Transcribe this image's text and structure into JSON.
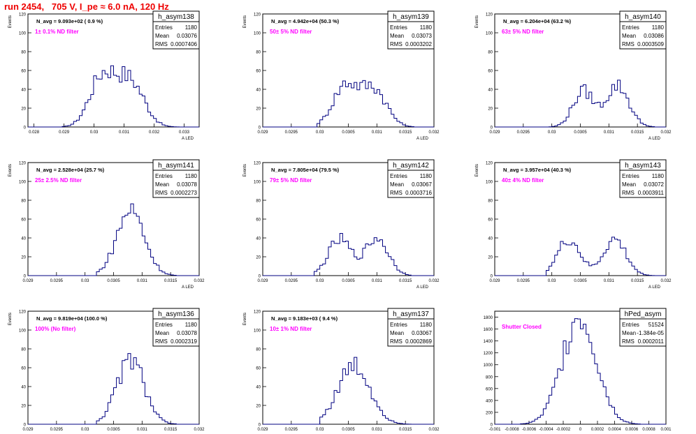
{
  "page": {
    "title": "run 2454,   705 V, I_pe ≈ 6.0 nA, 120 Hz"
  },
  "chart_data": [
    {
      "type": "bar",
      "name": "h_asym138",
      "navg": "N_avg = 9.093e+02 ( 0.9 %)",
      "label": "1± 0.1% ND filter",
      "stats": {
        "entries": "1180",
        "mean": "0.03076",
        "rms": "0.0007406"
      },
      "ylabel": "Events",
      "xlabel": "A_LED",
      "xlim": [
        0.0278,
        0.0335
      ],
      "ylim": [
        0,
        120
      ],
      "xticks": [
        0.028,
        0.029,
        0.03,
        0.031,
        0.032,
        0.033
      ],
      "xtick_labels": [
        "0.028",
        "0.029",
        "0.03",
        "0.031",
        "0.032",
        "0.033"
      ],
      "yticks": [
        0,
        20,
        40,
        60,
        80,
        100,
        120
      ],
      "shape": {
        "peaks": [
          [
            0.0302,
            42,
            0.0004
          ],
          [
            0.0309,
            38,
            0.0005
          ],
          [
            0.0314,
            22,
            0.0004
          ]
        ],
        "range": [
          0.0289,
          0.0328
        ]
      }
    },
    {
      "type": "bar",
      "name": "h_asym139",
      "navg": "N_avg = 4.942e+04 (50.3 %)",
      "label": "50± 5% ND filter",
      "stats": {
        "entries": "1180",
        "mean": "0.03073",
        "rms": "0.0003202"
      },
      "ylabel": "Events",
      "xlabel": "A_LED",
      "xlim": [
        0.029,
        0.032
      ],
      "ylim": [
        0,
        120
      ],
      "xticks": [
        0.029,
        0.0295,
        0.03,
        0.0305,
        0.031,
        0.0315,
        0.032
      ],
      "xtick_labels": [
        "0.029",
        "0.0295",
        "0.03",
        "0.0305",
        "0.031",
        "0.0315",
        "0.032"
      ],
      "yticks": [
        0,
        20,
        40,
        60,
        80,
        100,
        120
      ],
      "shape": {
        "peaks": [
          [
            0.03045,
            44,
            0.00022
          ],
          [
            0.03095,
            40,
            0.00022
          ]
        ],
        "range": [
          0.02995,
          0.03165
        ]
      }
    },
    {
      "type": "bar",
      "name": "h_asym140",
      "navg": "N_avg = 6.204e+04 (63.2 %)",
      "label": "63± 5% ND filter",
      "stats": {
        "entries": "1180",
        "mean": "0.03086",
        "rms": "0.0003509"
      },
      "ylabel": "Events",
      "xlabel": "A_LED",
      "xlim": [
        0.029,
        0.032
      ],
      "ylim": [
        0,
        120
      ],
      "xticks": [
        0.029,
        0.0295,
        0.03,
        0.0305,
        0.031,
        0.0315,
        0.032
      ],
      "xtick_labels": [
        "0.029",
        "0.0295",
        "0.03",
        "0.0305",
        "0.031",
        "0.0315",
        "0.032"
      ],
      "yticks": [
        0,
        20,
        40,
        60,
        80,
        100,
        120
      ],
      "shape": {
        "peaks": [
          [
            0.03055,
            38,
            0.00018
          ],
          [
            0.03115,
            44,
            0.0002
          ]
        ],
        "range": [
          0.02995,
          0.0318
        ]
      }
    },
    {
      "type": "bar",
      "name": "h_asym141",
      "navg": "N_avg = 2.528e+04 (25.7 %)",
      "label": "25± 2.5% ND filter",
      "stats": {
        "entries": "1180",
        "mean": "0.03078",
        "rms": "0.0002273"
      },
      "ylabel": "Events",
      "xlabel": "A_LED",
      "xlim": [
        0.029,
        0.032
      ],
      "ylim": [
        0,
        120
      ],
      "xticks": [
        0.029,
        0.0295,
        0.03,
        0.0305,
        0.031,
        0.0315,
        0.032
      ],
      "xtick_labels": [
        "0.029",
        "0.0295",
        "0.03",
        "0.0305",
        "0.031",
        "0.0315",
        "0.032"
      ],
      "yticks": [
        0,
        20,
        40,
        60,
        80,
        100,
        120
      ],
      "shape": {
        "peaks": [
          [
            0.0308,
            70,
            0.00024
          ]
        ],
        "range": [
          0.0302,
          0.0316
        ]
      }
    },
    {
      "type": "bar",
      "name": "h_asym142",
      "navg": "N_avg = 7.805e+04 (79.5 %)",
      "label": "79± 5% ND filter",
      "stats": {
        "entries": "1180",
        "mean": "0.03067",
        "rms": "0.0003716"
      },
      "ylabel": "Events",
      "xlabel": "A_LED",
      "xlim": [
        0.029,
        0.032
      ],
      "ylim": [
        0,
        120
      ],
      "xticks": [
        0.029,
        0.0295,
        0.03,
        0.0305,
        0.031,
        0.0315,
        0.032
      ],
      "xtick_labels": [
        "0.029",
        "0.0295",
        "0.03",
        "0.0305",
        "0.031",
        "0.0315",
        "0.032"
      ],
      "yticks": [
        0,
        20,
        40,
        60,
        80,
        100,
        120
      ],
      "shape": {
        "peaks": [
          [
            0.03035,
            38,
            0.0002
          ],
          [
            0.031,
            40,
            0.0002
          ]
        ],
        "range": [
          0.0299,
          0.0316
        ]
      }
    },
    {
      "type": "bar",
      "name": "h_asym143",
      "navg": "N_avg = 3.957e+04 (40.3 %)",
      "label": "40± 4% ND filter",
      "stats": {
        "entries": "1180",
        "mean": "0.03072",
        "rms": "0.0003911"
      },
      "ylabel": "Events",
      "xlabel": "A_LED",
      "xlim": [
        0.029,
        0.032
      ],
      "ylim": [
        0,
        120
      ],
      "xticks": [
        0.029,
        0.0295,
        0.03,
        0.0305,
        0.031,
        0.0315,
        0.032
      ],
      "xtick_labels": [
        "0.029",
        "0.0295",
        "0.03",
        "0.0305",
        "0.031",
        "0.0315",
        "0.032"
      ],
      "yticks": [
        0,
        20,
        40,
        60,
        80,
        100,
        120
      ],
      "shape": {
        "peaks": [
          [
            0.0303,
            38,
            0.0002
          ],
          [
            0.0311,
            38,
            0.0002
          ]
        ],
        "range": [
          0.0299,
          0.0318
        ]
      }
    },
    {
      "type": "bar",
      "name": "h_asym136",
      "navg": "N_avg = 9.819e+04 (100.0 %)",
      "label": "100% (No filter)",
      "stats": {
        "entries": "1180",
        "mean": "0.03078",
        "rms": "0.0002319"
      },
      "ylabel": "Events",
      "xlabel": "A_LED",
      "xlim": [
        0.029,
        0.032
      ],
      "ylim": [
        0,
        120
      ],
      "xticks": [
        0.029,
        0.0295,
        0.03,
        0.0305,
        0.031,
        0.0315,
        0.032
      ],
      "xtick_labels": [
        "0.029",
        "0.0295",
        "0.03",
        "0.0305",
        "0.031",
        "0.0315",
        "0.032"
      ],
      "yticks": [
        0,
        20,
        40,
        60,
        80,
        100,
        120
      ],
      "shape": {
        "peaks": [
          [
            0.0308,
            68,
            0.00024
          ]
        ],
        "range": [
          0.0302,
          0.0316
        ]
      }
    },
    {
      "type": "bar",
      "name": "h_asym137",
      "navg": "N_avg = 9.183e+03 ( 9.4 %)",
      "label": "10± 1% ND filter",
      "stats": {
        "entries": "1180",
        "mean": "0.03067",
        "rms": "0.0002869"
      },
      "ylabel": "Events",
      "xlabel": "A_LED",
      "xlim": [
        0.029,
        0.032
      ],
      "ylim": [
        0,
        120
      ],
      "xticks": [
        0.029,
        0.0295,
        0.03,
        0.0305,
        0.031,
        0.0315,
        0.032
      ],
      "xtick_labels": [
        "0.029",
        "0.0295",
        "0.03",
        "0.0305",
        "0.031",
        "0.0315",
        "0.032"
      ],
      "yticks": [
        0,
        20,
        40,
        60,
        80,
        100,
        120
      ],
      "shape": {
        "peaks": [
          [
            0.0306,
            62,
            0.00028
          ]
        ],
        "range": [
          0.03,
          0.0316
        ]
      }
    },
    {
      "type": "bar",
      "name": "hPed_asym",
      "navg": "",
      "label": "Shutter Closed",
      "stats": {
        "entries": "51524",
        "mean": "-1.384e-05",
        "rms": "0.0002011"
      },
      "ylabel": "",
      "xlabel": "",
      "xlim": [
        -0.001,
        0.001
      ],
      "ylim": [
        0,
        1900
      ],
      "xticks": [
        -0.001,
        -0.0008,
        -0.0006,
        -0.0004,
        -0.0002,
        0,
        0.0002,
        0.0004,
        0.0006,
        0.0008,
        0.001
      ],
      "xtick_labels": [
        "-0.001",
        "-0.0008",
        "-0.0006",
        "-0.0004",
        "-0.0002",
        "0",
        "0.0002",
        "0.0004",
        "0.0006",
        "0.0008",
        "0.001"
      ],
      "yticks": [
        0,
        200,
        400,
        600,
        800,
        1000,
        1200,
        1400,
        1600,
        1800
      ],
      "shape": {
        "peaks": [
          [
            -1e-05,
            1840,
            0.0002
          ]
        ],
        "range": [
          -0.0007,
          0.0007
        ]
      }
    }
  ]
}
